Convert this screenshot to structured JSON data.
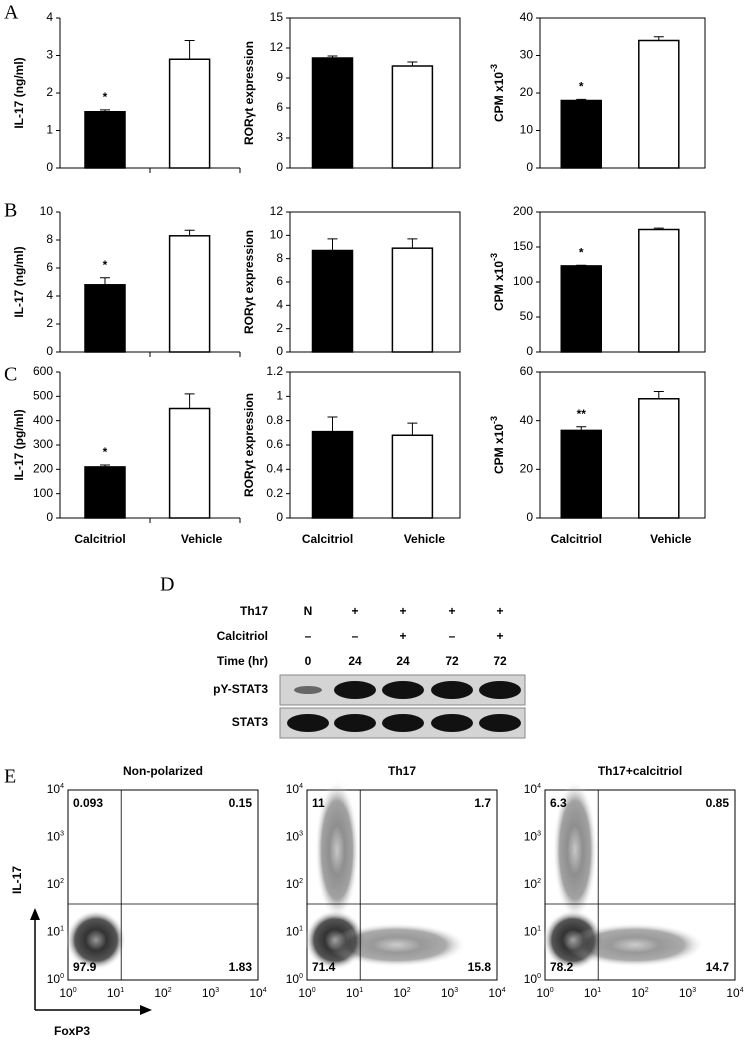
{
  "panel_labels": [
    "A",
    "B",
    "C",
    "D",
    "E"
  ],
  "chart_data": [
    {
      "type": "bar",
      "ylabel": "IL-17 (ng/ml)",
      "categories": [
        null,
        null
      ],
      "values": [
        1.5,
        2.9
      ],
      "errors": [
        0.05,
        0.5
      ],
      "value_annotations": [
        "*",
        null
      ],
      "colors": [
        "#000000",
        "#ffffff"
      ],
      "ylim": [
        0,
        4
      ],
      "yticks": [
        0,
        1,
        2,
        3,
        4
      ]
    },
    {
      "type": "bar",
      "ylabel": "RORγt expression",
      "categories": [
        null,
        null
      ],
      "values": [
        11,
        10.2
      ],
      "errors": [
        0.2,
        0.4
      ],
      "value_annotations": [
        null,
        null
      ],
      "colors": [
        "#000000",
        "#ffffff"
      ],
      "ylim": [
        0,
        15
      ],
      "yticks": [
        0,
        3,
        6,
        9,
        12,
        15
      ]
    },
    {
      "type": "bar",
      "ylabel": "CPM x10",
      "ylabel_exponent": "-3",
      "categories": [
        null,
        null
      ],
      "values": [
        18,
        34
      ],
      "errors": [
        0.3,
        1
      ],
      "value_annotations": [
        "*",
        null
      ],
      "colors": [
        "#000000",
        "#ffffff"
      ],
      "ylim": [
        0,
        40
      ],
      "yticks": [
        0,
        10,
        20,
        30,
        40
      ]
    },
    {
      "type": "bar",
      "ylabel": "IL-17 (ng/ml)",
      "categories": [
        null,
        null
      ],
      "values": [
        4.8,
        8.3
      ],
      "errors": [
        0.5,
        0.4
      ],
      "value_annotations": [
        "*",
        null
      ],
      "colors": [
        "#000000",
        "#ffffff"
      ],
      "ylim": [
        0,
        10
      ],
      "yticks": [
        0,
        2,
        4,
        6,
        8,
        10
      ]
    },
    {
      "type": "bar",
      "ylabel": "RORγt expression",
      "categories": [
        null,
        null
      ],
      "values": [
        8.7,
        8.9
      ],
      "errors": [
        1.0,
        0.8
      ],
      "value_annotations": [
        null,
        null
      ],
      "colors": [
        "#000000",
        "#ffffff"
      ],
      "ylim": [
        0,
        12
      ],
      "yticks": [
        0,
        2,
        4,
        6,
        8,
        10,
        12
      ]
    },
    {
      "type": "bar",
      "ylabel": "CPM x10",
      "ylabel_exponent": "-3",
      "categories": [
        null,
        null
      ],
      "values": [
        123,
        175
      ],
      "errors": [
        1,
        2
      ],
      "value_annotations": [
        "*",
        null
      ],
      "colors": [
        "#000000",
        "#ffffff"
      ],
      "ylim": [
        0,
        200
      ],
      "yticks": [
        0,
        50,
        100,
        150,
        200
      ]
    },
    {
      "type": "bar",
      "ylabel": "IL-17 (pg/ml)",
      "categories": [
        "Calcitriol",
        "Vehicle"
      ],
      "values": [
        210,
        450
      ],
      "errors": [
        8,
        60
      ],
      "value_annotations": [
        "*",
        null
      ],
      "colors": [
        "#000000",
        "#ffffff"
      ],
      "ylim": [
        0,
        600
      ],
      "yticks": [
        0,
        100,
        200,
        300,
        400,
        500,
        600
      ]
    },
    {
      "type": "bar",
      "ylabel": "RORγt expression",
      "categories": [
        "Calcitriol",
        "Vehicle"
      ],
      "values": [
        0.71,
        0.68
      ],
      "errors": [
        0.12,
        0.1
      ],
      "value_annotations": [
        null,
        null
      ],
      "colors": [
        "#000000",
        "#ffffff"
      ],
      "ylim": [
        0,
        1.2
      ],
      "yticks": [
        0,
        0.2,
        0.4,
        0.6,
        0.8,
        1,
        1.2
      ]
    },
    {
      "type": "bar",
      "ylabel": "CPM x10",
      "ylabel_exponent": "-3",
      "categories": [
        "Calcitriol",
        "Vehicle"
      ],
      "values": [
        36,
        49
      ],
      "errors": [
        1.5,
        3
      ],
      "value_annotations": [
        "**",
        null
      ],
      "colors": [
        "#000000",
        "#ffffff"
      ],
      "ylim": [
        0,
        60
      ],
      "yticks": [
        0,
        20,
        40,
        60
      ]
    }
  ],
  "western_blot": {
    "conditions": [
      {
        "label": "Th17",
        "values": [
          "N",
          "+",
          "+",
          "+",
          "+"
        ]
      },
      {
        "label": "Calcitriol",
        "values": [
          "–",
          "–",
          "+",
          "–",
          "+"
        ]
      },
      {
        "label": "Time (hr)",
        "values": [
          "0",
          "24",
          "24",
          "72",
          "72"
        ]
      }
    ],
    "bands": [
      "pY-STAT3",
      "STAT3"
    ]
  },
  "flow": {
    "ylabel": "IL-17",
    "xlabel": "FoxP3",
    "tick_base": "10",
    "tick_exponents": [
      "0",
      "1",
      "2",
      "3",
      "4"
    ],
    "plots": [
      {
        "title": "Non-polarized",
        "quadrants": [
          0.093,
          0.15,
          97.9,
          1.83
        ]
      },
      {
        "title": "Th17",
        "quadrants": [
          11,
          1.7,
          71.4,
          15.8
        ]
      },
      {
        "title": "Th17+calcitriol",
        "quadrants": [
          6.3,
          0.85,
          78.2,
          14.7
        ]
      }
    ]
  }
}
